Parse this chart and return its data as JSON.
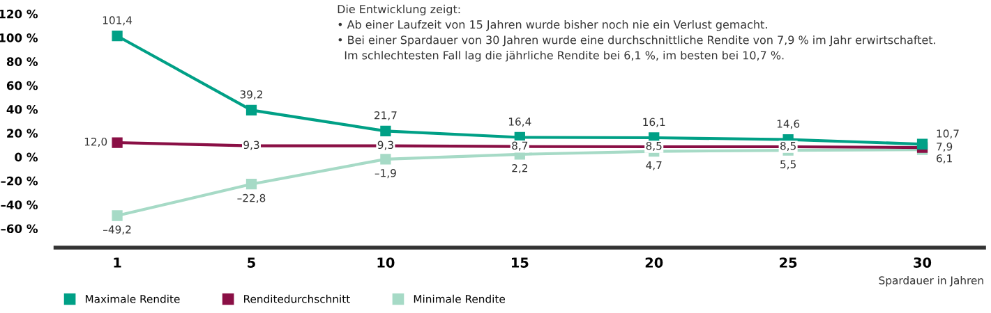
{
  "chart_data": {
    "type": "line",
    "categories": [
      "1",
      "5",
      "10",
      "15",
      "20",
      "25",
      "30"
    ],
    "series": [
      {
        "name": "Maximale Rendite",
        "color": "#00a086",
        "values": [
          101.4,
          39.2,
          21.7,
          16.4,
          16.1,
          14.6,
          10.7
        ],
        "value_labels": [
          "101,4",
          "39,2",
          "21,7",
          "16,4",
          "16,1",
          "14,6",
          "10,7"
        ]
      },
      {
        "name": "Renditedurchschnitt",
        "color": "#8a0f45",
        "values": [
          12.0,
          9.3,
          9.3,
          8.7,
          8.5,
          8.5,
          7.9
        ],
        "value_labels": [
          "12,0",
          "9,3",
          "9,3",
          "8,7",
          "8,5",
          "8,5",
          "7,9"
        ]
      },
      {
        "name": "Minimale Rendite",
        "color": "#a6dac6",
        "values": [
          -49.2,
          -22.8,
          -1.9,
          2.2,
          4.7,
          5.5,
          6.1
        ],
        "value_labels": [
          "–49,2",
          "–22,8",
          "–1,9",
          "2,2",
          "4,7",
          "5,5",
          "6,1"
        ]
      }
    ],
    "ylim": [
      -76,
      120
    ],
    "yticks": [
      {
        "value": -60,
        "label": "–60 %"
      },
      {
        "value": -40,
        "label": "–40 %"
      },
      {
        "value": -20,
        "label": "–20 %"
      },
      {
        "value": 0,
        "label": "0 %"
      },
      {
        "value": 20,
        "label": "20 %"
      },
      {
        "value": 40,
        "label": "40 %"
      },
      {
        "value": 60,
        "label": "60 %"
      },
      {
        "value": 80,
        "label": "80 %"
      },
      {
        "value": 100,
        "label": "100 %"
      },
      {
        "value": 120,
        "label": "120 %"
      }
    ],
    "xlabel": "Spardauer in Jahren",
    "annotations": [
      "Die Entwicklung zeigt:\n• Ab einer Laufzeit von 15 Jahren wurde bisher noch nie ein Verlust gemacht.\n• Bei einer Spardauer von 30 Jahren wurde eine durchschnittliche Rendite von 7,9 % im Jahr erwirtschaftet.\n  Im schlechtesten Fall lag die jährliche Rendite bei 6,1 %, im besten bei 10,7 %."
    ],
    "marker": "square",
    "line_style": "solid",
    "grid": false,
    "legend": "bottom left"
  }
}
